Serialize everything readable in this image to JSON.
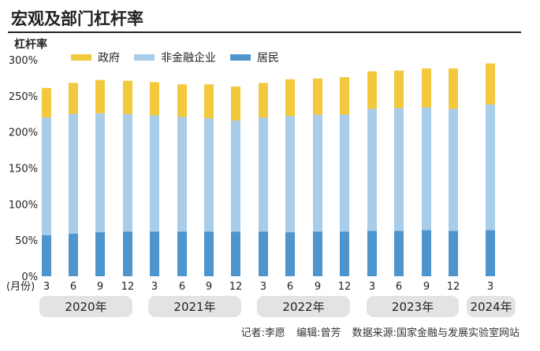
{
  "title": "宏观及部门杠杆率",
  "credits": [
    "记者:李愿",
    "编辑:曾芳",
    "数据来源:国家金融与发展实验室网站"
  ],
  "chart_data": {
    "type": "bar",
    "stacked": true,
    "title": "宏观及部门杠杆率",
    "ylabel": "杠杆率",
    "ylim": [
      0,
      300
    ],
    "yticks": [
      "0%",
      "50%",
      "100%",
      "150%",
      "200%",
      "250%",
      "300%"
    ],
    "xlabel_prefix": "(月份)",
    "categories": [
      "3",
      "6",
      "9",
      "12",
      "3",
      "6",
      "9",
      "12",
      "3",
      "6",
      "9",
      "12",
      "3",
      "6",
      "9",
      "12",
      "3"
    ],
    "years": [
      "2020年",
      "2021年",
      "2022年",
      "2023年",
      "2024年"
    ],
    "legend_position": "top",
    "grid": false,
    "series": [
      {
        "name": "居民",
        "color": "#4f95cd",
        "values": [
          57,
          59,
          61,
          62,
          62,
          62,
          62,
          62,
          62,
          61,
          62,
          62,
          63,
          63,
          64,
          63,
          64
        ]
      },
      {
        "name": "非金融企业",
        "color": "#a9cde9",
        "values": [
          163,
          166,
          165,
          163,
          161,
          159,
          157,
          154,
          158,
          161,
          162,
          162,
          169,
          170,
          170,
          169,
          174
        ]
      },
      {
        "name": "政府",
        "color": "#f2c93c",
        "values": [
          41,
          43,
          46,
          46,
          46,
          45,
          47,
          47,
          48,
          51,
          50,
          52,
          52,
          52,
          54,
          56,
          57
        ]
      }
    ]
  }
}
